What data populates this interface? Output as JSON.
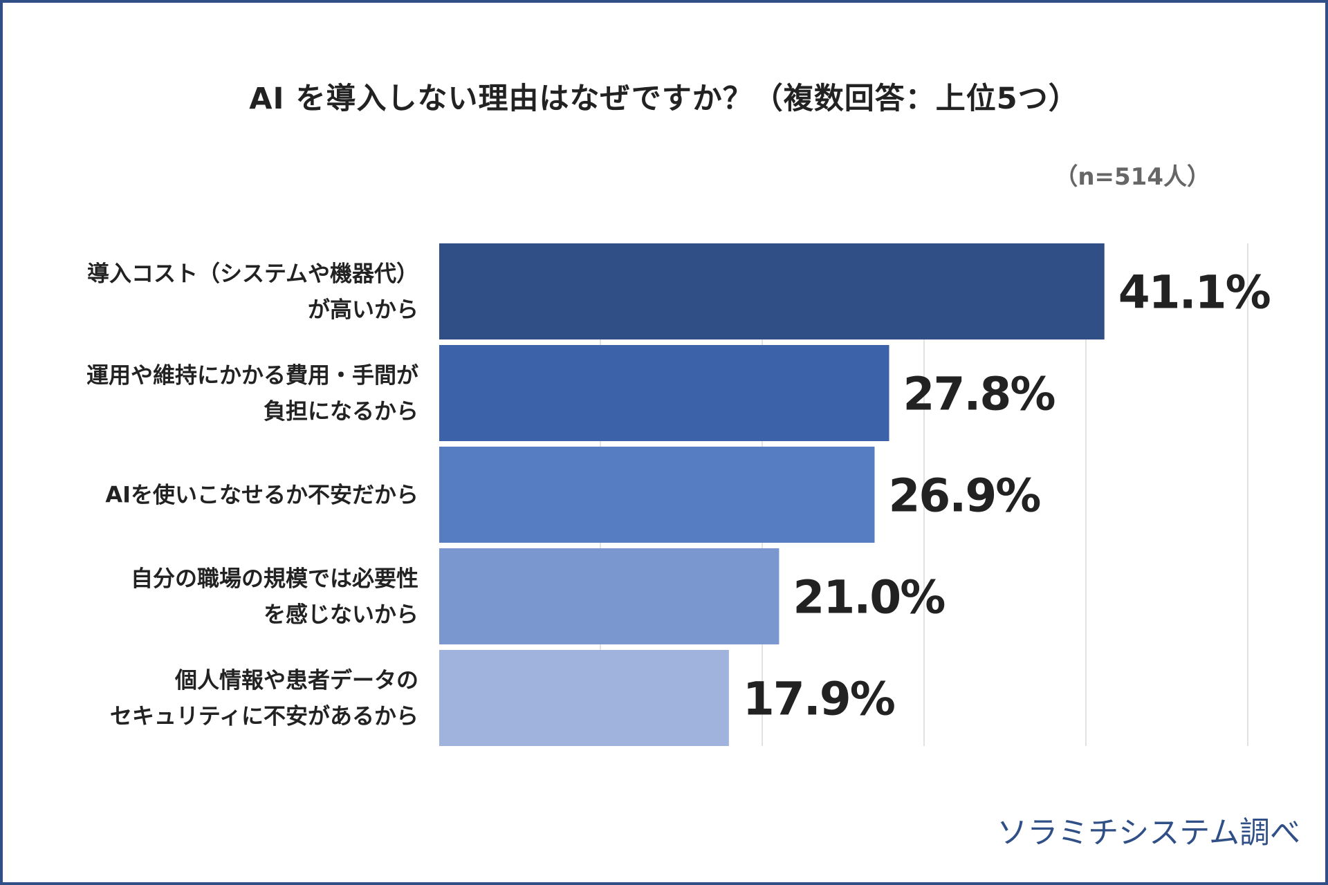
{
  "chart_data": {
    "type": "bar",
    "orientation": "horizontal",
    "title": "AI を導入しない理由はなぜですか？（複数回答：上位5つ）",
    "note": "（n=514人）",
    "categories": [
      [
        "導入コスト（システムや機器代）",
        "が高いから"
      ],
      [
        "運用や維持にかかる費用・手間が",
        "負担になるから"
      ],
      [
        "AIを使いこなせるか不安だから"
      ],
      [
        "自分の職場の規模では必要性",
        "を感じないから"
      ],
      [
        "個人情報や患者データの",
        "セキュリティに不安があるから"
      ]
    ],
    "values": [
      41.1,
      27.8,
      26.9,
      21.0,
      17.9
    ],
    "value_labels": [
      "41.1%",
      "27.8%",
      "26.9%",
      "21.0%",
      "17.9%"
    ],
    "bar_colors": [
      "#2f4f86",
      "#3c63aa",
      "#567cc2",
      "#7a98cf",
      "#a0b3dc"
    ],
    "xlim": [
      0,
      50
    ],
    "grid": true
  },
  "source": "ソラミチシステム調べ"
}
